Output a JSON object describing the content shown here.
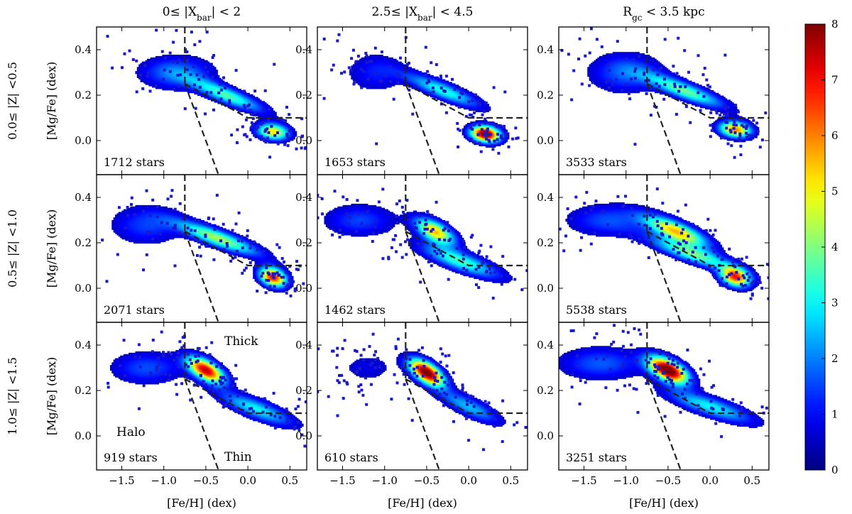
{
  "figure": {
    "col_titles": [
      {
        "pre": "0≤ |X",
        "sub": "bar",
        "post": "| < 2"
      },
      {
        "pre": "2.5≤ |X",
        "sub": "bar",
        "post": "| < 4.5"
      },
      {
        "pre": "R",
        "sub": "gc",
        "post": " < 3.5 kpc"
      }
    ],
    "row_labels": [
      "0.0≤ |Z| <0.5",
      "0.5≤ |Z| <1.0",
      "1.0≤ |Z| <1.5"
    ],
    "xlabel": "[Fe/H] (dex)",
    "ylabel": "[Mg/Fe] (dex)",
    "region_labels": {
      "thick": "Thick",
      "thin": "Thin",
      "halo": "Halo"
    },
    "colorbar": {
      "min": 0,
      "max": 8,
      "ticks": [
        "0",
        "1",
        "2",
        "3",
        "4",
        "5",
        "6",
        "7",
        "8"
      ],
      "colormap": "jet"
    }
  },
  "chart_data": {
    "type": "heatmap",
    "description_axis": "2D density of stars in [Fe/H]-[Mg/Fe] plane",
    "xlim": [
      -1.8,
      0.7
    ],
    "ylim": [
      -0.15,
      0.5
    ],
    "xticks": [
      -1.5,
      -1.0,
      -0.5,
      0.0,
      0.5
    ],
    "xtick_labels": [
      "−1.5",
      "−1.0",
      "−0.5",
      "0.0",
      "0.5"
    ],
    "yticks": [
      0.0,
      0.2,
      0.4
    ],
    "ytick_labels": [
      "0.0",
      "0.2",
      "0.4"
    ],
    "dividers": {
      "vertical_feh": -0.75,
      "thick_thin_line": [
        [
          -0.75,
          0.25
        ],
        [
          0.0,
          0.1
        ],
        [
          0.7,
          0.1
        ]
      ],
      "halo_thin_line": [
        [
          -0.75,
          0.25
        ],
        [
          -0.3,
          -0.2
        ]
      ]
    },
    "panels": [
      {
        "row": 0,
        "col": 0,
        "count_label": "1712 stars",
        "blobs": [
          {
            "x": 0.3,
            "y": 0.04,
            "sx": 0.13,
            "sy": 0.025,
            "rho": -0.2,
            "peak": 5.2
          },
          {
            "x": -0.25,
            "y": 0.2,
            "sx": 0.3,
            "sy": 0.05,
            "rho": -0.85,
            "peak": 3.6
          },
          {
            "x": -0.85,
            "y": 0.3,
            "sx": 0.3,
            "sy": 0.05,
            "rho": 0.0,
            "peak": 2.0
          }
        ]
      },
      {
        "row": 0,
        "col": 1,
        "count_label": "1653 stars",
        "blobs": [
          {
            "x": 0.2,
            "y": 0.03,
            "sx": 0.12,
            "sy": 0.025,
            "rho": -0.2,
            "peak": 8.5
          },
          {
            "x": -0.3,
            "y": 0.22,
            "sx": 0.3,
            "sy": 0.05,
            "rho": -0.85,
            "peak": 3.2
          },
          {
            "x": -1.1,
            "y": 0.3,
            "sx": 0.25,
            "sy": 0.06,
            "rho": 0.0,
            "peak": 1.2
          }
        ]
      },
      {
        "row": 0,
        "col": 2,
        "count_label": "3533 stars",
        "blobs": [
          {
            "x": 0.3,
            "y": 0.05,
            "sx": 0.13,
            "sy": 0.025,
            "rho": -0.2,
            "peak": 6.0
          },
          {
            "x": -0.3,
            "y": 0.22,
            "sx": 0.32,
            "sy": 0.05,
            "rho": -0.85,
            "peak": 3.8
          },
          {
            "x": -1.0,
            "y": 0.3,
            "sx": 0.3,
            "sy": 0.06,
            "rho": 0.0,
            "peak": 1.8
          }
        ]
      },
      {
        "row": 1,
        "col": 0,
        "count_label": "2071 stars",
        "blobs": [
          {
            "x": 0.3,
            "y": 0.05,
            "sx": 0.11,
            "sy": 0.03,
            "rho": -0.3,
            "peak": 7.0
          },
          {
            "x": -0.35,
            "y": 0.22,
            "sx": 0.33,
            "sy": 0.05,
            "rho": -0.85,
            "peak": 4.3
          },
          {
            "x": -1.2,
            "y": 0.28,
            "sx": 0.3,
            "sy": 0.06,
            "rho": 0.0,
            "peak": 1.5
          }
        ]
      },
      {
        "row": 1,
        "col": 1,
        "count_label": "1462 stars",
        "blobs": [
          {
            "x": -0.4,
            "y": 0.25,
            "sx": 0.16,
            "sy": 0.04,
            "rho": -0.6,
            "peak": 5.5
          },
          {
            "x": -0.1,
            "y": 0.12,
            "sx": 0.32,
            "sy": 0.05,
            "rho": -0.8,
            "peak": 3.5
          },
          {
            "x": -1.3,
            "y": 0.3,
            "sx": 0.3,
            "sy": 0.05,
            "rho": 0.0,
            "peak": 1.5
          }
        ]
      },
      {
        "row": 1,
        "col": 2,
        "count_label": "5538 stars",
        "blobs": [
          {
            "x": 0.3,
            "y": 0.05,
            "sx": 0.12,
            "sy": 0.03,
            "rho": -0.3,
            "peak": 6.5
          },
          {
            "x": -0.4,
            "y": 0.25,
            "sx": 0.25,
            "sy": 0.045,
            "rho": -0.75,
            "peak": 5.5
          },
          {
            "x": -0.2,
            "y": 0.15,
            "sx": 0.35,
            "sy": 0.05,
            "rho": -0.85,
            "peak": 3.8
          },
          {
            "x": -1.2,
            "y": 0.3,
            "sx": 0.35,
            "sy": 0.05,
            "rho": 0.0,
            "peak": 1.6
          }
        ]
      },
      {
        "row": 2,
        "col": 0,
        "count_label": "919 stars",
        "blobs": [
          {
            "x": -0.5,
            "y": 0.29,
            "sx": 0.15,
            "sy": 0.04,
            "rho": -0.6,
            "peak": 7.5
          },
          {
            "x": 0.1,
            "y": 0.12,
            "sx": 0.3,
            "sy": 0.05,
            "rho": -0.8,
            "peak": 3.0
          },
          {
            "x": -1.2,
            "y": 0.3,
            "sx": 0.3,
            "sy": 0.05,
            "rho": 0.0,
            "peak": 1.6
          }
        ]
      },
      {
        "row": 2,
        "col": 1,
        "count_label": "610 stars",
        "blobs": [
          {
            "x": -0.5,
            "y": 0.28,
            "sx": 0.14,
            "sy": 0.04,
            "rho": -0.6,
            "peak": 8.5
          },
          {
            "x": 0.0,
            "y": 0.13,
            "sx": 0.25,
            "sy": 0.05,
            "rho": -0.8,
            "peak": 2.5
          },
          {
            "x": -1.2,
            "y": 0.3,
            "sx": 0.25,
            "sy": 0.05,
            "rho": 0.0,
            "peak": 0.8
          }
        ]
      },
      {
        "row": 2,
        "col": 2,
        "count_label": "3251 stars",
        "blobs": [
          {
            "x": -0.5,
            "y": 0.29,
            "sx": 0.16,
            "sy": 0.04,
            "rho": -0.55,
            "peak": 8.8
          },
          {
            "x": 0.0,
            "y": 0.13,
            "sx": 0.35,
            "sy": 0.05,
            "rho": -0.8,
            "peak": 3.0
          },
          {
            "x": -1.3,
            "y": 0.32,
            "sx": 0.35,
            "sy": 0.05,
            "rho": 0.0,
            "peak": 1.7
          }
        ]
      }
    ]
  }
}
